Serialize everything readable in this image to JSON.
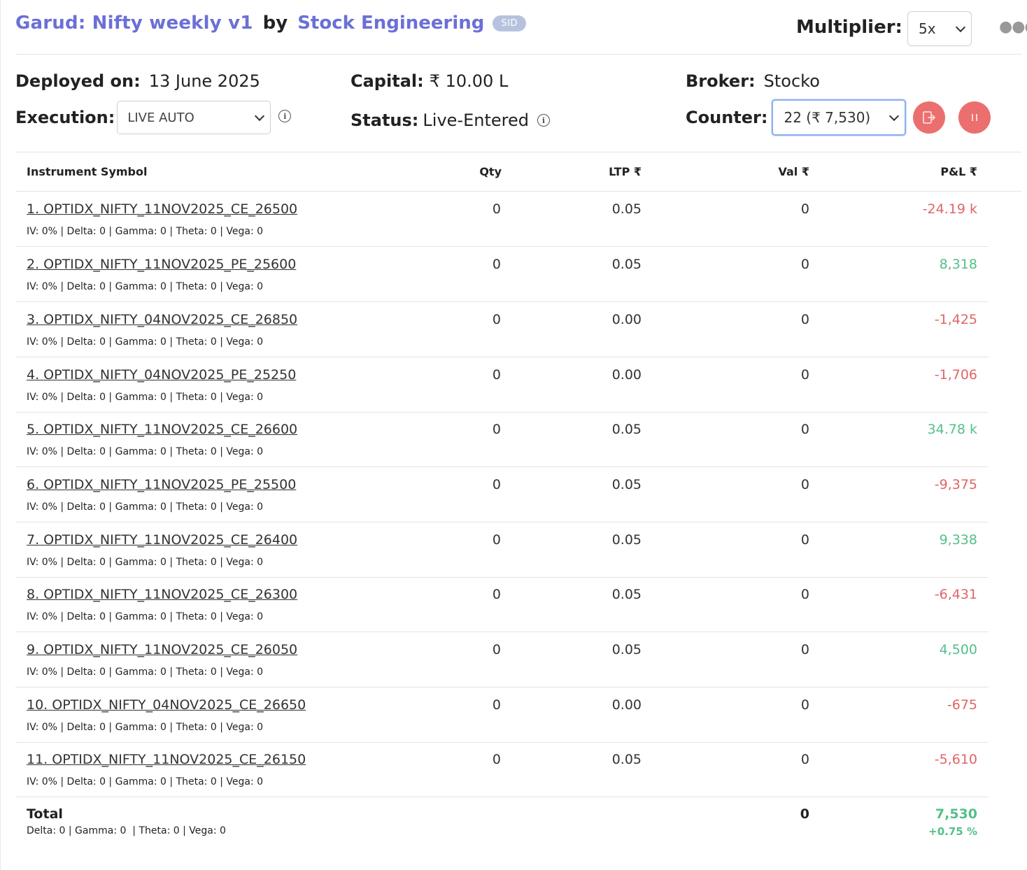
{
  "header": {
    "strategy_name": "Garud: Nifty weekly v1",
    "by_label": "by",
    "owner": "Stock Engineering",
    "badge": "SID",
    "multiplier_label": "Multiplier:",
    "multiplier_value": "5x",
    "more_icon": "more-horizontal-icon"
  },
  "info": {
    "deployed_label": "Deployed on:",
    "deployed_value": "13 June 2025",
    "capital_label": "Capital:",
    "capital_value": "₹ 10.00 L",
    "broker_label": "Broker:",
    "broker_value": "Stocko",
    "execution_label": "Execution:",
    "execution_value": "LIVE AUTO",
    "status_label": "Status:",
    "status_value": "Live-Entered",
    "counter_label": "Counter:",
    "counter_value": "22 (₹ 7,530)"
  },
  "table": {
    "headers": {
      "symbol": "Instrument Symbol",
      "qty": "Qty",
      "ltp": "LTP ₹",
      "val": "Val ₹",
      "pnl": "P&L ₹"
    },
    "rows": [
      {
        "symbol": "1. OPTIDX_NIFTY_11NOV2025_CE_26500",
        "greeks": "IV: 0% | Delta: 0 | Gamma: 0 | Theta: 0 | Vega: 0",
        "qty": "0",
        "ltp": "0.05",
        "val": "0",
        "pnl": "-24.19 k",
        "sign": "neg"
      },
      {
        "symbol": "2. OPTIDX_NIFTY_11NOV2025_PE_25600",
        "greeks": "IV: 0% | Delta: 0 | Gamma: 0 | Theta: 0 | Vega: 0",
        "qty": "0",
        "ltp": "0.05",
        "val": "0",
        "pnl": "8,318",
        "sign": "pos"
      },
      {
        "symbol": "3. OPTIDX_NIFTY_04NOV2025_CE_26850",
        "greeks": "IV: 0% | Delta: 0 | Gamma: 0 | Theta: 0 | Vega: 0",
        "qty": "0",
        "ltp": "0.00",
        "val": "0",
        "pnl": "-1,425",
        "sign": "neg"
      },
      {
        "symbol": "4. OPTIDX_NIFTY_04NOV2025_PE_25250",
        "greeks": "IV: 0% | Delta: 0 | Gamma: 0 | Theta: 0 | Vega: 0",
        "qty": "0",
        "ltp": "0.00",
        "val": "0",
        "pnl": "-1,706",
        "sign": "neg"
      },
      {
        "symbol": "5. OPTIDX_NIFTY_11NOV2025_CE_26600",
        "greeks": "IV: 0% | Delta: 0 | Gamma: 0 | Theta: 0 | Vega: 0",
        "qty": "0",
        "ltp": "0.05",
        "val": "0",
        "pnl": "34.78 k",
        "sign": "pos"
      },
      {
        "symbol": "6. OPTIDX_NIFTY_11NOV2025_PE_25500",
        "greeks": "IV: 0% | Delta: 0 | Gamma: 0 | Theta: 0 | Vega: 0",
        "qty": "0",
        "ltp": "0.05",
        "val": "0",
        "pnl": "-9,375",
        "sign": "neg"
      },
      {
        "symbol": "7. OPTIDX_NIFTY_11NOV2025_CE_26400",
        "greeks": "IV: 0% | Delta: 0 | Gamma: 0 | Theta: 0 | Vega: 0",
        "qty": "0",
        "ltp": "0.05",
        "val": "0",
        "pnl": "9,338",
        "sign": "pos"
      },
      {
        "symbol": "8. OPTIDX_NIFTY_11NOV2025_CE_26300",
        "greeks": "IV: 0% | Delta: 0 | Gamma: 0 | Theta: 0 | Vega: 0",
        "qty": "0",
        "ltp": "0.05",
        "val": "0",
        "pnl": "-6,431",
        "sign": "neg"
      },
      {
        "symbol": "9. OPTIDX_NIFTY_11NOV2025_CE_26050",
        "greeks": "IV: 0% | Delta: 0 | Gamma: 0 | Theta: 0 | Vega: 0",
        "qty": "0",
        "ltp": "0.05",
        "val": "0",
        "pnl": "4,500",
        "sign": "pos"
      },
      {
        "symbol": "10. OPTIDX_NIFTY_04NOV2025_CE_26650",
        "greeks": "IV: 0% | Delta: 0 | Gamma: 0 | Theta: 0 | Vega: 0",
        "qty": "0",
        "ltp": "0.00",
        "val": "0",
        "pnl": "-675",
        "sign": "neg"
      },
      {
        "symbol": "11. OPTIDX_NIFTY_11NOV2025_CE_26150",
        "greeks": "IV: 0% | Delta: 0 | Gamma: 0 | Theta: 0 | Vega: 0",
        "qty": "0",
        "ltp": "0.05",
        "val": "0",
        "pnl": "-5,610",
        "sign": "neg"
      }
    ],
    "total": {
      "label": "Total",
      "greeks": "Delta: 0 | Gamma: 0  | Theta: 0 | Vega: 0",
      "val": "0",
      "pnl": "7,530",
      "pnl_pct": "+0.75 %"
    }
  },
  "colors": {
    "accent": "#6b70d6",
    "negative": "#e06565",
    "positive": "#55bf8a",
    "danger_button": "#ec6f6f",
    "badge": "#b7c3dd"
  }
}
